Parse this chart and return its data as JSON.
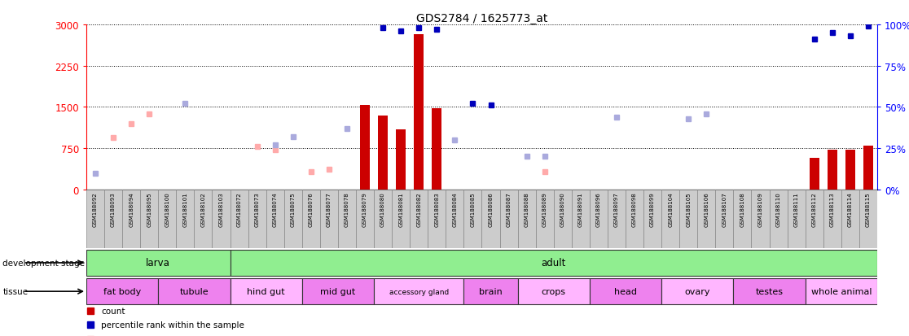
{
  "title": "GDS2784 / 1625773_at",
  "samples": [
    "GSM188092",
    "GSM188093",
    "GSM188094",
    "GSM188095",
    "GSM188100",
    "GSM188101",
    "GSM188102",
    "GSM188103",
    "GSM188072",
    "GSM188073",
    "GSM188074",
    "GSM188075",
    "GSM188076",
    "GSM188077",
    "GSM188078",
    "GSM188079",
    "GSM188080",
    "GSM188081",
    "GSM188082",
    "GSM188083",
    "GSM188084",
    "GSM188085",
    "GSM188086",
    "GSM188087",
    "GSM188088",
    "GSM188089",
    "GSM188090",
    "GSM188091",
    "GSM188096",
    "GSM188097",
    "GSM188098",
    "GSM188099",
    "GSM188104",
    "GSM188105",
    "GSM188106",
    "GSM188107",
    "GSM188108",
    "GSM188109",
    "GSM188110",
    "GSM188111",
    "GSM188112",
    "GSM188113",
    "GSM188114",
    "GSM188115"
  ],
  "count_values": [
    null,
    null,
    null,
    null,
    null,
    null,
    null,
    null,
    null,
    null,
    null,
    null,
    null,
    null,
    null,
    1530,
    1350,
    1100,
    2820,
    1480,
    null,
    null,
    null,
    null,
    null,
    null,
    null,
    null,
    null,
    null,
    null,
    null,
    null,
    null,
    null,
    null,
    null,
    null,
    null,
    null,
    580,
    720,
    720,
    800
  ],
  "rank_values_pct": [
    null,
    null,
    null,
    null,
    null,
    null,
    null,
    null,
    null,
    null,
    null,
    null,
    null,
    null,
    null,
    null,
    null,
    null,
    null,
    null,
    null,
    null,
    null,
    null,
    null,
    null,
    null,
    null,
    null,
    null,
    null,
    null,
    null,
    null,
    null,
    null,
    null,
    null,
    null,
    null,
    null,
    null,
    null,
    null
  ],
  "rank_present_pct": [
    null,
    null,
    null,
    null,
    null,
    null,
    null,
    null,
    null,
    null,
    null,
    null,
    null,
    null,
    null,
    null,
    98,
    96,
    98,
    97,
    null,
    52,
    51,
    null,
    null,
    null,
    null,
    null,
    null,
    null,
    null,
    null,
    null,
    null,
    null,
    null,
    null,
    null,
    null,
    null,
    91,
    95,
    93,
    99
  ],
  "value_absent": [
    null,
    950,
    1200,
    1380,
    null,
    null,
    null,
    null,
    null,
    780,
    720,
    null,
    330,
    370,
    null,
    null,
    null,
    null,
    null,
    null,
    null,
    null,
    null,
    null,
    null,
    330,
    null,
    null,
    null,
    null,
    null,
    null,
    null,
    null,
    null,
    null,
    null,
    null,
    null,
    null,
    null,
    null,
    null,
    null
  ],
  "rank_absent_pct": [
    10,
    null,
    null,
    null,
    null,
    52,
    null,
    null,
    null,
    null,
    27,
    32,
    null,
    null,
    37,
    null,
    null,
    null,
    null,
    null,
    30,
    null,
    null,
    null,
    20,
    20,
    null,
    null,
    null,
    44,
    null,
    null,
    null,
    43,
    46,
    null,
    null,
    null,
    null,
    null,
    null,
    null,
    null,
    null
  ],
  "dev_stage_groups": [
    {
      "label": "larva",
      "start": 0,
      "end": 7,
      "color": "#90EE90"
    },
    {
      "label": "adult",
      "start": 8,
      "end": 43,
      "color": "#90EE90"
    }
  ],
  "tissue_groups": [
    {
      "label": "fat body",
      "start": 0,
      "end": 3,
      "color": "#EE82EE"
    },
    {
      "label": "tubule",
      "start": 4,
      "end": 7,
      "color": "#EE82EE"
    },
    {
      "label": "hind gut",
      "start": 8,
      "end": 11,
      "color": "#FFB6FF"
    },
    {
      "label": "mid gut",
      "start": 12,
      "end": 15,
      "color": "#EE82EE"
    },
    {
      "label": "accessory gland",
      "start": 16,
      "end": 20,
      "color": "#FFB6FF"
    },
    {
      "label": "brain",
      "start": 21,
      "end": 23,
      "color": "#EE82EE"
    },
    {
      "label": "crops",
      "start": 24,
      "end": 27,
      "color": "#FFB6FF"
    },
    {
      "label": "head",
      "start": 28,
      "end": 31,
      "color": "#EE82EE"
    },
    {
      "label": "ovary",
      "start": 32,
      "end": 35,
      "color": "#FFB6FF"
    },
    {
      "label": "testes",
      "start": 36,
      "end": 39,
      "color": "#EE82EE"
    },
    {
      "label": "whole animal",
      "start": 40,
      "end": 43,
      "color": "#FFB6FF"
    }
  ],
  "ylim_left": [
    0,
    3000
  ],
  "ylim_right": [
    0,
    100
  ],
  "yticks_left": [
    0,
    750,
    1500,
    2250,
    3000
  ],
  "yticks_right": [
    0,
    25,
    50,
    75,
    100
  ],
  "bar_color": "#CC0000",
  "rank_color": "#0000BB",
  "absent_val_color": "#FFAAAA",
  "absent_rank_color": "#AAAADD",
  "bg_color": "#FFFFFF",
  "sample_bg": "#CCCCCC"
}
